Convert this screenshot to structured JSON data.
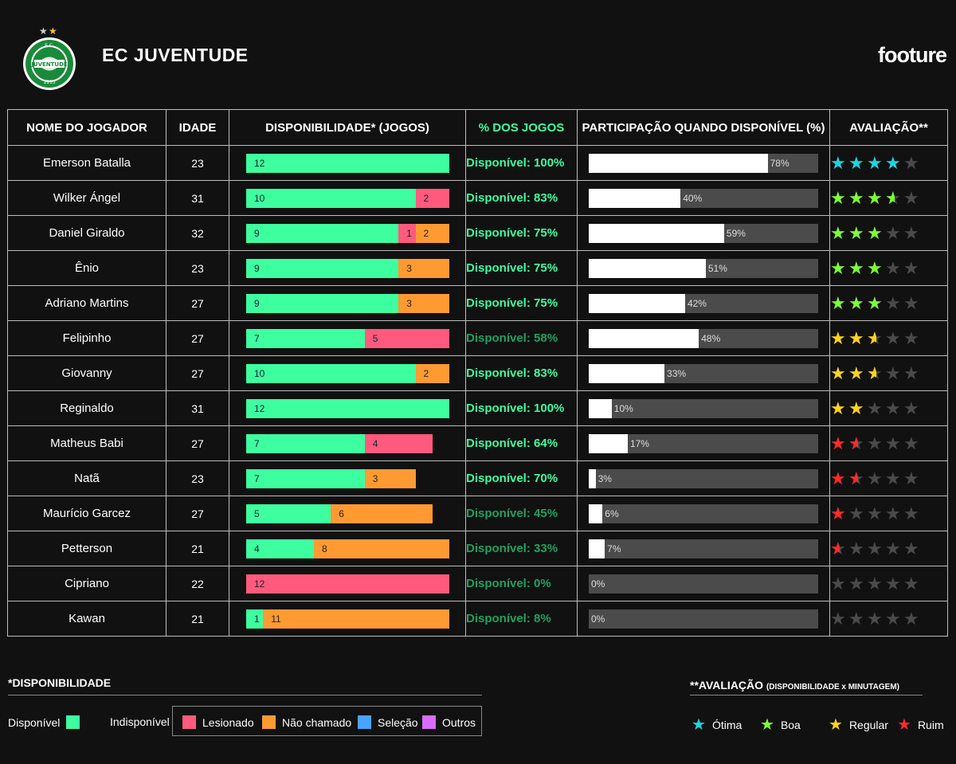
{
  "header": {
    "team_name": "EC JUVENTUDE",
    "brand": "footure",
    "crest_text": "JUVENTUDE",
    "crest_year": "1913",
    "crest_initials": "E.C."
  },
  "columns": {
    "name": "NOME DO JOGADOR",
    "age": "IDADE",
    "availability": "DISPONIBILIDADE* (JOGOS)",
    "pct_games": "% DOS JOGOS",
    "participation": "PARTICIPAÇÃO QUANDO DISPONÍVEL (%)",
    "rating": "AVALIAÇÃO**"
  },
  "colors": {
    "available": "#3dffa0",
    "injured": "#ff5a7e",
    "not_called": "#ff9a33",
    "selection": "#4aa3ff",
    "others": "#d86cff",
    "star_otima": "#1fd3e0",
    "star_boa": "#7cff3a",
    "star_regular": "#ffd21f",
    "star_ruim": "#ff2a2a",
    "star_empty": "#4a4a4a",
    "pct_bright": "#3dffa0",
    "pct_dim": "#21a060"
  },
  "chart_data": {
    "type": "table",
    "total_games": 12,
    "rows": [
      {
        "name": "Emerson Batalla",
        "age": "23",
        "available": 12,
        "injured": 0,
        "not_called": 0,
        "pct_label": "Disponível: 100%",
        "participation": 78,
        "participation_label": "78%",
        "stars": 4,
        "rating_tier": "otima",
        "pct_bright": true
      },
      {
        "name": "Wilker Ángel",
        "age": "31",
        "available": 10,
        "injured": 2,
        "not_called": 0,
        "pct_label": "Disponível: 83%",
        "participation": 40,
        "participation_label": "40%",
        "stars": 3.5,
        "rating_tier": "boa",
        "pct_bright": true
      },
      {
        "name": "Daniel Giraldo",
        "age": "32",
        "available": 9,
        "injured": 1,
        "not_called": 2,
        "pct_label": "Disponível: 75%",
        "participation": 59,
        "participation_label": "59%",
        "stars": 3,
        "rating_tier": "boa",
        "pct_bright": true
      },
      {
        "name": "Ênio",
        "age": "23",
        "available": 9,
        "injured": 0,
        "not_called": 3,
        "pct_label": "Disponível: 75%",
        "participation": 51,
        "participation_label": "51%",
        "stars": 3,
        "rating_tier": "boa",
        "pct_bright": true
      },
      {
        "name": "Adriano Martins",
        "age": "27",
        "available": 9,
        "injured": 0,
        "not_called": 3,
        "pct_label": "Disponível: 75%",
        "participation": 42,
        "participation_label": "42%",
        "stars": 3,
        "rating_tier": "boa",
        "pct_bright": true
      },
      {
        "name": "Felipinho",
        "age": "27",
        "available": 7,
        "injured": 5,
        "not_called": 0,
        "pct_label": "Disponível: 58%",
        "participation": 48,
        "participation_label": "48%",
        "stars": 2.5,
        "rating_tier": "regular",
        "pct_bright": false
      },
      {
        "name": "Giovanny",
        "age": "27",
        "available": 10,
        "injured": 0,
        "not_called": 2,
        "pct_label": "Disponível: 83%",
        "participation": 33,
        "participation_label": "33%",
        "stars": 2.5,
        "rating_tier": "regular",
        "pct_bright": true
      },
      {
        "name": "Reginaldo",
        "age": "31",
        "available": 12,
        "injured": 0,
        "not_called": 0,
        "pct_label": "Disponível: 100%",
        "participation": 10,
        "participation_label": "10%",
        "stars": 2,
        "rating_tier": "regular",
        "pct_bright": true
      },
      {
        "name": "Matheus Babi",
        "age": "27",
        "available": 7,
        "injured": 4,
        "not_called": 0,
        "pct_label": "Disponível: 64%",
        "participation": 17,
        "participation_label": "17%",
        "stars": 1.5,
        "rating_tier": "ruim",
        "pct_bright": true
      },
      {
        "name": "Natã",
        "age": "23",
        "available": 7,
        "injured": 0,
        "not_called": 3,
        "pct_label": "Disponível: 70%",
        "participation": 3,
        "participation_label": "3%",
        "stars": 1.5,
        "rating_tier": "ruim",
        "pct_bright": true
      },
      {
        "name": "Maurício Garcez",
        "age": "27",
        "available": 5,
        "injured": 0,
        "not_called": 6,
        "pct_label": "Disponível: 45%",
        "participation": 6,
        "participation_label": "6%",
        "stars": 1,
        "rating_tier": "ruim",
        "pct_bright": false
      },
      {
        "name": "Petterson",
        "age": "21",
        "available": 4,
        "injured": 0,
        "not_called": 8,
        "pct_label": "Disponível: 33%",
        "participation": 7,
        "participation_label": "7%",
        "stars": 0.5,
        "rating_tier": "ruim",
        "pct_bright": false
      },
      {
        "name": "Cipriano",
        "age": "22",
        "available": 0,
        "injured": 12,
        "not_called": 0,
        "pct_label": "Disponível: 0%",
        "participation": 0,
        "participation_label": "0%",
        "stars": 0,
        "rating_tier": "ruim",
        "pct_bright": false
      },
      {
        "name": "Kawan",
        "age": "21",
        "available": 1,
        "injured": 0,
        "not_called": 11,
        "pct_label": "Disponível: 8%",
        "participation": 0,
        "participation_label": "0%",
        "stars": 0,
        "rating_tier": "ruim",
        "pct_bright": false
      }
    ]
  },
  "legend": {
    "title": "*DISPONIBILIDADE",
    "available_label": "Disponível",
    "unavailable_label": "Indisponível",
    "injured_label": "Lesionado",
    "not_called_label": "Não chamado",
    "selection_label": "Seleção",
    "others_label": "Outros"
  },
  "rating_legend": {
    "title": "**AVALIAÇÃO",
    "subtitle": "(DISPONIBILIDADE x MINUTAGEM)",
    "otima": "Ótima",
    "boa": "Boa",
    "regular": "Regular",
    "ruim": "Ruim"
  }
}
